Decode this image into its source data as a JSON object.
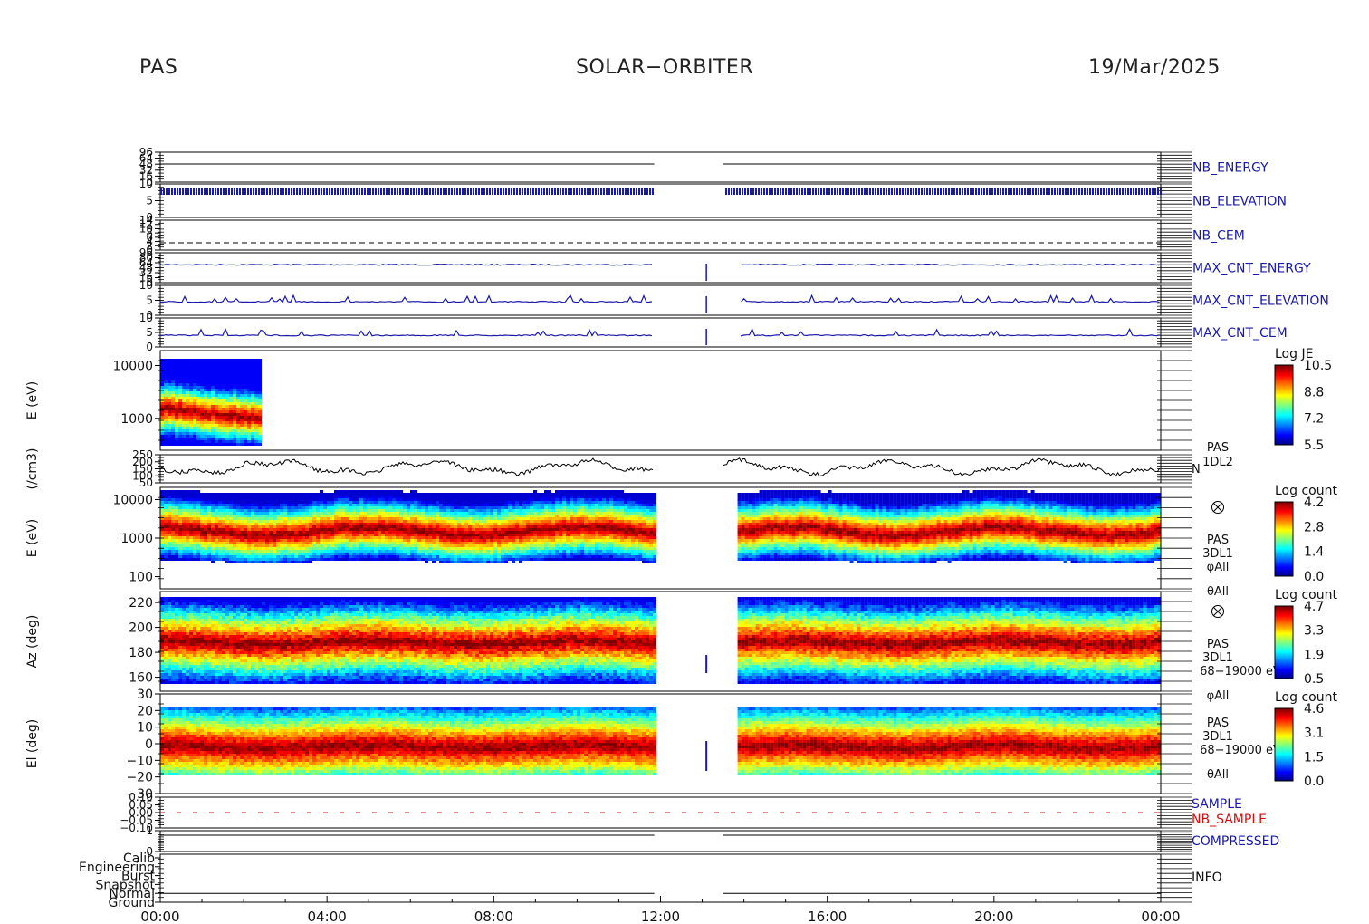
{
  "header": {
    "left": "PAS",
    "center": "SOLAR−ORBITER",
    "right": "19/Mar/2025"
  },
  "colors": {
    "trace_blue": "#1a1aa8",
    "trace_black": "#000000",
    "label_blue": "#1a1aa8",
    "label_red": "#d01010"
  },
  "chart_data": {
    "type": "heatmap",
    "x_ticks": [
      "00:00",
      "04:00",
      "08:00",
      "12:00",
      "16:00",
      "20:00",
      "00:00"
    ],
    "x_range_hours": [
      0,
      24
    ],
    "gap_hours": [
      11.85,
      13.5
    ],
    "panels": [
      {
        "id": "nb-energy",
        "label": "NB_ENERGY",
        "yticks": [
          "96",
          "64",
          "48",
          "32",
          "16",
          "0"
        ],
        "trace_level": 0.15
      },
      {
        "id": "nb-elevation",
        "label": "NB_ELEVATION",
        "yticks": [
          "10",
          "5",
          "0"
        ],
        "trace_level": 0.3
      },
      {
        "id": "nb-cem",
        "label": "NB_CEM",
        "yticks": [
          "14",
          "12",
          "10",
          "8",
          "6",
          "4",
          "2",
          "0"
        ],
        "trace_level": 0.75
      },
      {
        "id": "max-cnt-energy",
        "label": "MAX_CNT_ENERGY",
        "yticks": [
          "96",
          "80",
          "64",
          "48",
          "32",
          "16",
          "0"
        ],
        "trace_level": 0.4
      },
      {
        "id": "max-cnt-elevation",
        "label": "MAX_CNT_ELEVATION",
        "yticks": [
          "10",
          "5",
          "0"
        ],
        "trace_level": 0.55
      },
      {
        "id": "max-cnt-cem",
        "label": "MAX_CNT_CEM",
        "yticks": [
          "10",
          "5",
          "0"
        ],
        "trace_level": 0.6
      },
      {
        "id": "pas-1dl2-spectrogram",
        "ylabel": "E (eV)",
        "yticks": [
          "10000",
          "1000"
        ],
        "scale": "log",
        "ylim": [
          300,
          20000
        ],
        "data_extent_hours": [
          0,
          2.4
        ],
        "colorbar": {
          "title": "Log JE",
          "ticks": [
            "10.5",
            "8.8",
            "7.2",
            "5.5"
          ]
        }
      },
      {
        "id": "pas-1dl2-density",
        "ylabel": "(/cm3)",
        "yticks": [
          "250",
          "200",
          "150",
          "100",
          "50"
        ],
        "ylim": [
          50,
          250
        ],
        "right_labels": [
          "PAS",
          "1DL2",
          "N"
        ]
      },
      {
        "id": "pas-3dl1-energy",
        "ylabel": "E (eV)",
        "yticks": [
          "10000",
          "1000",
          "100"
        ],
        "scale": "log",
        "ylim": [
          100,
          14000
        ],
        "colorbar": {
          "title": "Log count",
          "ticks": [
            "4.2",
            "2.8",
            "1.4",
            "0.0"
          ]
        },
        "right_labels": [
          "PAS",
          "3DL1",
          "φAll",
          "θAll"
        ]
      },
      {
        "id": "pas-3dl1-azimuth",
        "ylabel": "Az (deg)",
        "yticks": [
          "220",
          "200",
          "180",
          "160"
        ],
        "ylim": [
          152,
          226
        ],
        "colorbar": {
          "title": "Log count",
          "ticks": [
            "4.7",
            "3.3",
            "1.9",
            "0.5"
          ]
        },
        "right_labels": [
          "PAS",
          "3DL1",
          "68−19000 eV",
          "φAll"
        ]
      },
      {
        "id": "pas-3dl1-elevation",
        "ylabel": "El (deg)",
        "yticks": [
          "30",
          "20",
          "10",
          "0",
          "−10",
          "−20",
          "−30"
        ],
        "ylim": [
          -30,
          30
        ],
        "colorbar": {
          "title": "Log count",
          "ticks": [
            "4.6",
            "3.1",
            "1.5",
            "0.0"
          ]
        },
        "right_labels": [
          "PAS",
          "3DL1",
          "68−19000 eV",
          "θAll"
        ]
      },
      {
        "id": "sample",
        "labels": [
          "SAMPLE",
          "NB_SAMPLE"
        ],
        "yticks": [
          "0.10",
          "0.05",
          "0.00",
          "−0.05",
          "−0.10"
        ]
      },
      {
        "id": "compressed",
        "label": "COMPRESSED",
        "yticks": [
          "1",
          "0"
        ]
      },
      {
        "id": "info",
        "label": "INFO",
        "yticks": [
          "Calib",
          "Engineering",
          "Burst",
          "Snapshot",
          "Normal",
          "Ground"
        ]
      }
    ]
  }
}
